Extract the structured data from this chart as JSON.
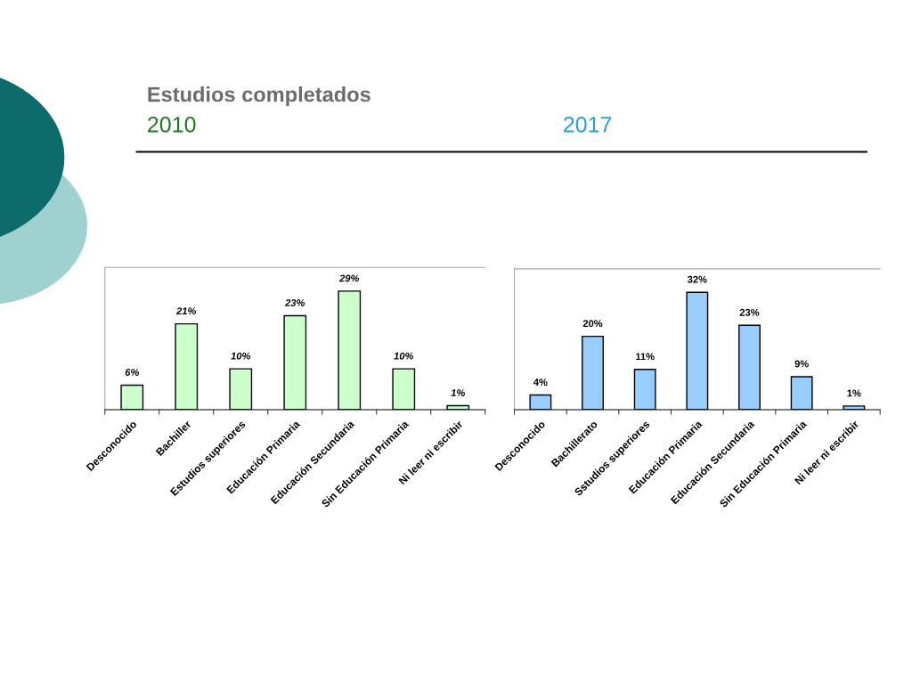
{
  "chart_data": [
    {
      "type": "bar",
      "title": "Estudios completados",
      "subtitle": "2010",
      "categories": [
        "Desconocido",
        "Bachiller",
        "Estudios superiores",
        "Educación Primaria",
        "Educación Secundaria",
        "Sin Educación Primaria",
        "Ni leer ni escribir"
      ],
      "values": [
        6,
        21,
        10,
        23,
        29,
        10,
        1
      ],
      "value_labels": [
        "6%",
        "21%",
        "10%",
        "23%",
        "29%",
        "10%",
        "1%"
      ],
      "color": "#ccffcc",
      "tick_labels": "x",
      "grid": false,
      "legend": false
    },
    {
      "type": "bar",
      "subtitle": "2017",
      "categories": [
        "Desconocido",
        "Bachillerato",
        "Sstudios superiores",
        "Educación Primaria",
        "Educación Secundaria",
        "Sin Educación Primaria",
        "Ni leer ni escribir"
      ],
      "values": [
        4,
        20,
        11,
        32,
        23,
        9,
        1
      ],
      "value_labels": [
        "4%",
        "20%",
        "11%",
        "32%",
        "23%",
        "9%",
        "1%"
      ],
      "color": "#99ccff",
      "tick_labels": "x",
      "grid": false,
      "legend": false
    }
  ]
}
